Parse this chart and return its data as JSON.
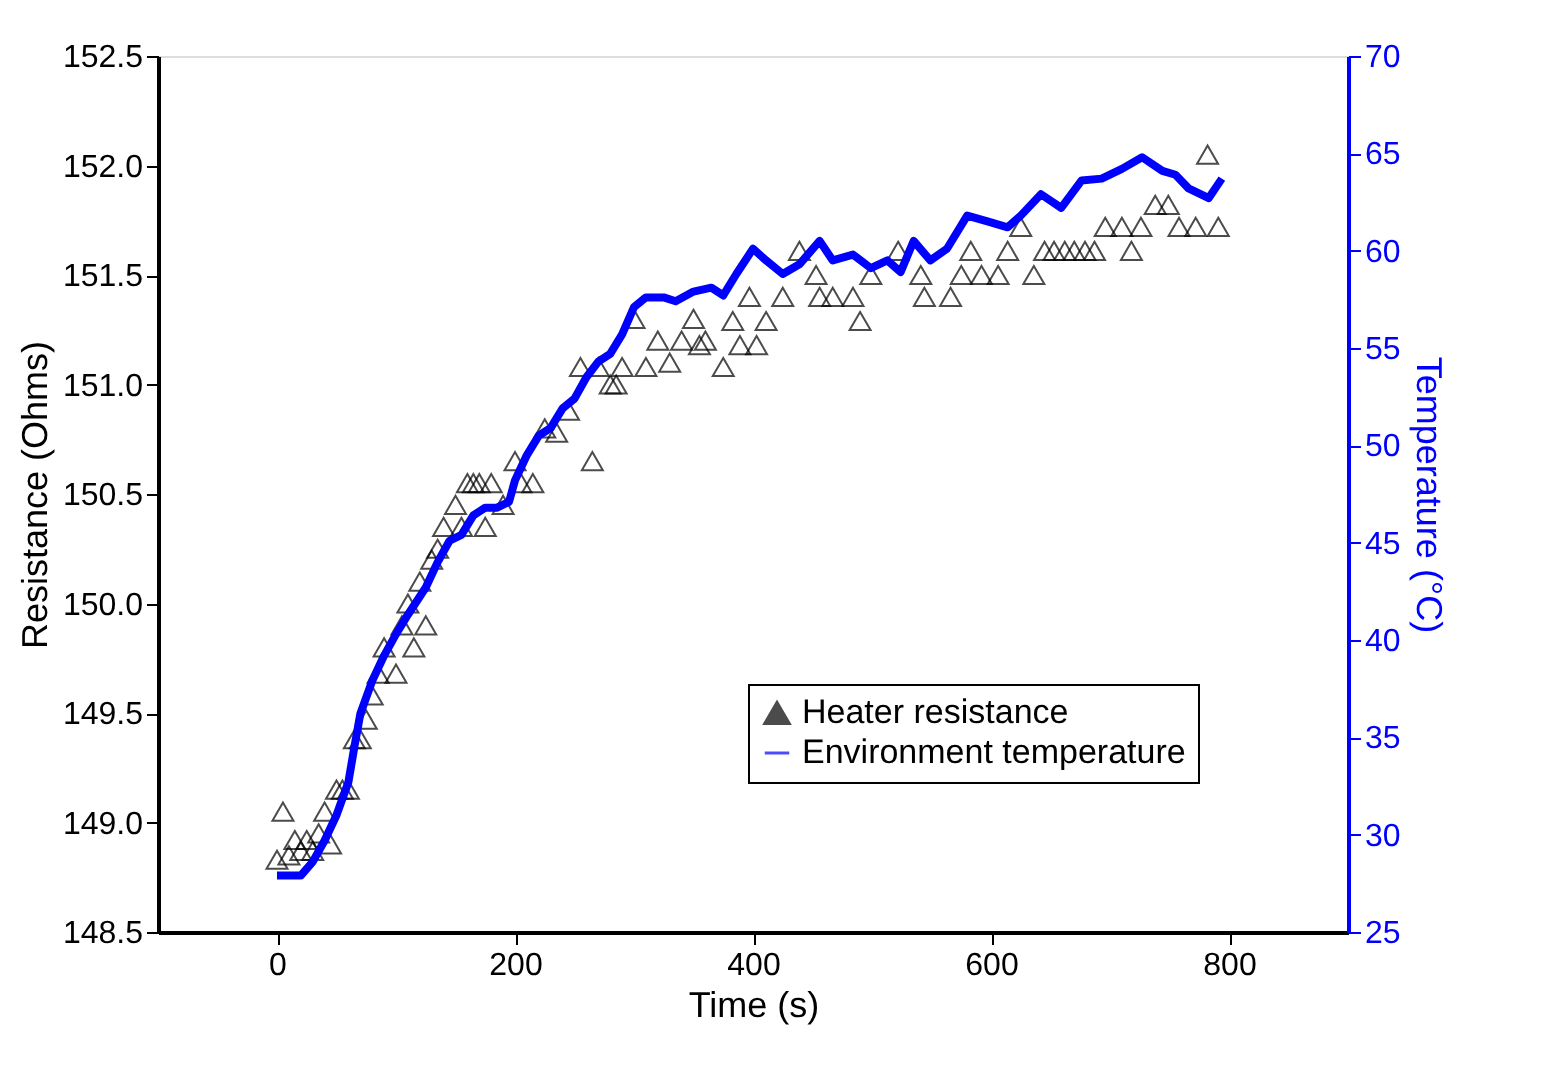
{
  "chart_data": {
    "type": "scatter",
    "xlabel": "Time (s)",
    "ylabel": "Resistance (Ohms)",
    "y2label": "Temperature (°C)",
    "xlim": [
      -100,
      900
    ],
    "xticks": [
      0,
      200,
      400,
      600,
      800
    ],
    "ylim": [
      148.5,
      152.5
    ],
    "yticks": [
      148.5,
      {
        "value": 149,
        "label": "149.0"
      },
      149.5,
      {
        "value": 150,
        "label": "150.0"
      },
      150.5,
      {
        "value": 151,
        "label": "151.0"
      },
      151.5,
      {
        "value": 152,
        "label": "152.0"
      },
      152.5
    ],
    "y2lim": [
      25,
      70
    ],
    "y2ticks": [
      25,
      30,
      35,
      40,
      45,
      50,
      55,
      60,
      65,
      70
    ],
    "grid": false,
    "legend": "bottom right",
    "series": [
      {
        "name": "Heater resistance",
        "marker": "triangle",
        "color": "#000000",
        "x": [
          0,
          5,
          10,
          15,
          20,
          25,
          30,
          35,
          40,
          45,
          50,
          55,
          60,
          65,
          70,
          75,
          80,
          85,
          90,
          100,
          105,
          110,
          115,
          120,
          125,
          130,
          135,
          140,
          150,
          155,
          160,
          165,
          170,
          175,
          180,
          190,
          200,
          205,
          215,
          225,
          235,
          245,
          255,
          265,
          270,
          280,
          285,
          290,
          300,
          310,
          320,
          330,
          340,
          350,
          355,
          360,
          375,
          383,
          389,
          397,
          403,
          411,
          425,
          439,
          453,
          456,
          467,
          484,
          490,
          499,
          522,
          541,
          544,
          566,
          575,
          583,
          592,
          606,
          614,
          625,
          636,
          645,
          653,
          662,
          670,
          679,
          687,
          696,
          710,
          718,
          726,
          738,
          749,
          758,
          772,
          782,
          791
        ],
        "values": [
          148.83,
          149.05,
          148.85,
          148.92,
          148.87,
          148.92,
          148.87,
          148.95,
          149.05,
          148.9,
          149.15,
          149.15,
          149.15,
          149.38,
          149.38,
          149.47,
          149.58,
          149.68,
          149.8,
          149.68,
          149.9,
          150.0,
          149.8,
          150.1,
          149.9,
          150.2,
          150.25,
          150.35,
          150.45,
          150.35,
          150.55,
          150.55,
          150.55,
          150.35,
          150.55,
          150.45,
          150.65,
          150.55,
          150.55,
          150.8,
          150.78,
          150.88,
          151.08,
          150.65,
          151.08,
          151.0,
          151.0,
          151.08,
          151.3,
          151.08,
          151.2,
          151.1,
          151.2,
          151.3,
          151.18,
          151.2,
          151.08,
          151.29,
          151.18,
          151.4,
          151.18,
          151.29,
          151.4,
          151.61,
          151.5,
          151.4,
          151.4,
          151.4,
          151.29,
          151.5,
          151.61,
          151.5,
          151.4,
          151.4,
          151.5,
          151.61,
          151.5,
          151.5,
          151.61,
          151.72,
          151.5,
          151.61,
          151.61,
          151.61,
          151.61,
          151.61,
          151.61,
          151.72,
          151.72,
          151.61,
          151.72,
          151.82,
          151.82,
          151.72,
          151.72,
          152.05,
          151.72
        ]
      },
      {
        "name": "Environment temperature",
        "type": "line",
        "axis": "y2",
        "line_style": "solid",
        "color": "#0000ff",
        "x": [
          0,
          20,
          30,
          40,
          50,
          60,
          65,
          70,
          80,
          90,
          100,
          110,
          125,
          135,
          145,
          155,
          165,
          175,
          185,
          195,
          200,
          210,
          220,
          230,
          240,
          250,
          260,
          270,
          280,
          290,
          300,
          310,
          325,
          335,
          350,
          365,
          375,
          386,
          400,
          411,
          425,
          439,
          456,
          467,
          484,
          499,
          513,
          524,
          535,
          549,
          563,
          580,
          597,
          614,
          625,
          642,
          659,
          676,
          693,
          710,
          727,
          744,
          755,
          766,
          783,
          794
        ],
        "values": [
          27.9,
          27.9,
          28.6,
          29.7,
          31.0,
          32.7,
          34.5,
          36.2,
          37.9,
          39.2,
          40.3,
          41.3,
          42.7,
          44.0,
          45.1,
          45.4,
          46.4,
          46.8,
          46.8,
          47.1,
          48.2,
          49.5,
          50.5,
          50.9,
          51.9,
          52.4,
          53.5,
          54.3,
          54.7,
          55.7,
          57.1,
          57.6,
          57.6,
          57.4,
          57.9,
          58.1,
          57.7,
          58.8,
          60.1,
          59.5,
          58.8,
          59.3,
          60.5,
          59.5,
          59.8,
          59.1,
          59.5,
          58.9,
          60.5,
          59.5,
          60.1,
          61.8,
          61.5,
          61.2,
          61.8,
          62.9,
          62.2,
          63.6,
          63.7,
          64.2,
          64.8,
          64.1,
          63.9,
          63.2,
          62.7,
          63.7
        ]
      }
    ]
  }
}
